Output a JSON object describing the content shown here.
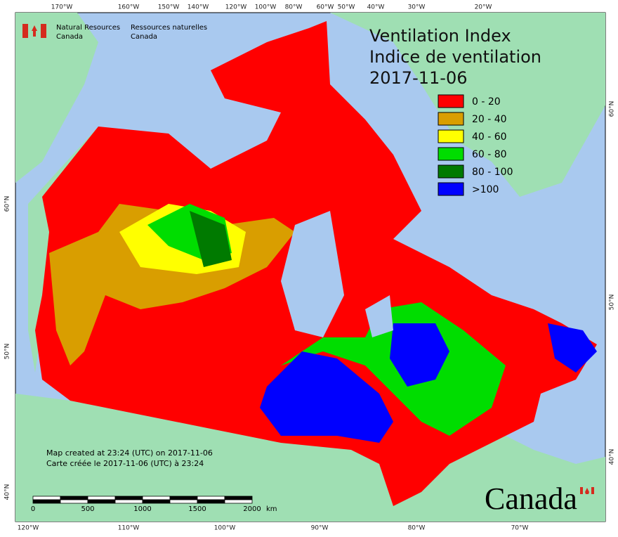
{
  "header": {
    "agency_en": [
      "Natural Resources",
      "Canada"
    ],
    "agency_fr": [
      "Ressources naturelles",
      "Canada"
    ]
  },
  "title": [
    "Ventilation Index",
    "Indice de ventilation",
    "2017-11-06"
  ],
  "legend": [
    {
      "label": "0 - 20",
      "color": "#ff0000"
    },
    {
      "label": "20 - 40",
      "color": "#d99e00"
    },
    {
      "label": "40 - 60",
      "color": "#ffff00"
    },
    {
      "label": "60 - 80",
      "color": "#00dd00"
    },
    {
      "label": "80 - 100",
      "color": "#007a00"
    },
    {
      "label": ">100",
      "color": "#0000ff"
    }
  ],
  "graticule": {
    "top": [
      "170°W",
      "160°W",
      "150°W",
      "140°W",
      "120°W",
      "100°W",
      "80°W",
      "60°W",
      "50°W",
      "40°W",
      "30°W",
      "20°W"
    ],
    "bottom": [
      "120°W",
      "110°W",
      "100°W",
      "90°W",
      "80°W",
      "70°W"
    ],
    "left": [
      "60°N",
      "50°N",
      "40°N"
    ],
    "right": [
      "60°N",
      "50°N",
      "40°N"
    ]
  },
  "footer": {
    "created_en": "Map created at 23:24 (UTC) on 2017-11-06",
    "created_fr": "Carte créée le 2017-11-06 (UTC) à 23:24"
  },
  "scale_bar": {
    "labels": [
      "0",
      "500",
      "1000",
      "1500",
      "2000"
    ],
    "unit": "km"
  },
  "wordmark": "Canada"
}
